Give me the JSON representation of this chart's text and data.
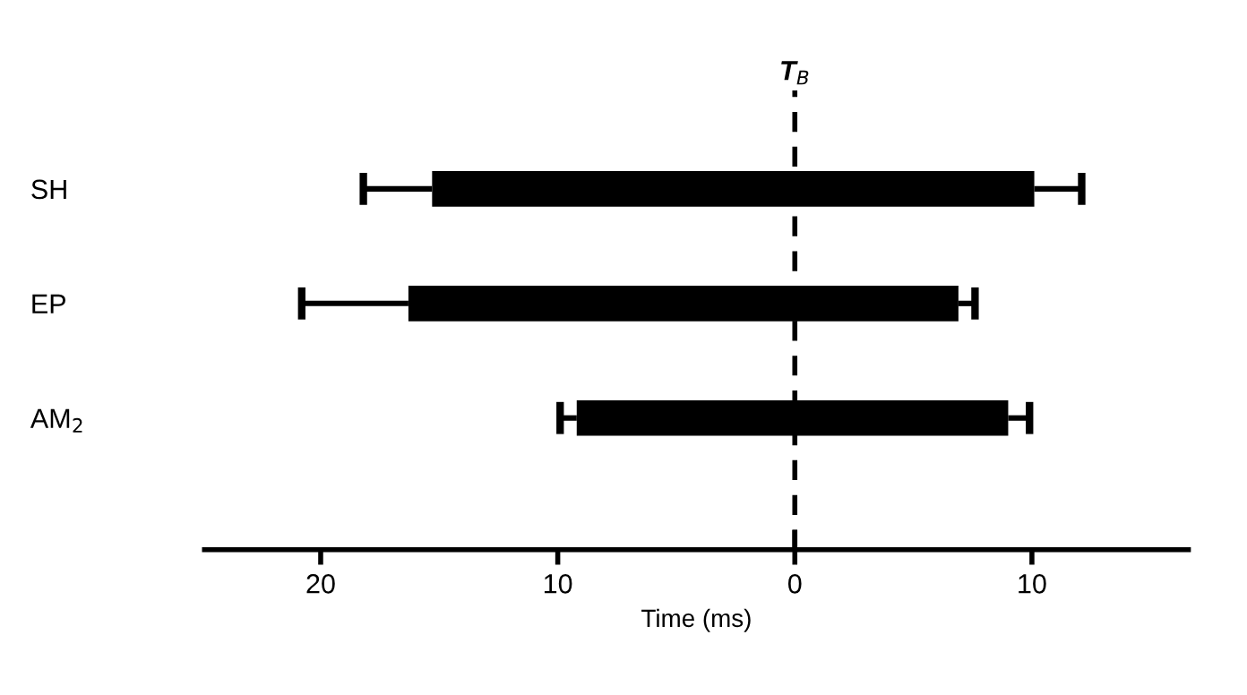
{
  "chart_data": {
    "type": "bar",
    "orientation": "horizontal",
    "xlabel": "Time (ms)",
    "categories": [
      "SH",
      "EP",
      "AM$_{2}$"
    ],
    "base": [
      -15.3,
      -16.3,
      -9.2
    ],
    "values": [
      25.4,
      23.2,
      18.2
    ],
    "errors": [
      [
        -18.2,
        12.1
      ],
      [
        -20.8,
        7.6
      ],
      [
        -9.9,
        9.9
      ]
    ],
    "color": "#000000",
    "xlim": [
      -24.9,
      16.6
    ],
    "xticks": [
      {
        "value": -20,
        "label": "20"
      },
      {
        "value": -10,
        "label": "10"
      },
      0,
      10
    ],
    "ref_lines": [
      {
        "axis": "x",
        "value": 0,
        "label": "T$_{B}$",
        "color": "#000000",
        "line_style": "dashed"
      }
    ],
    "grid": false,
    "legend": false
  }
}
